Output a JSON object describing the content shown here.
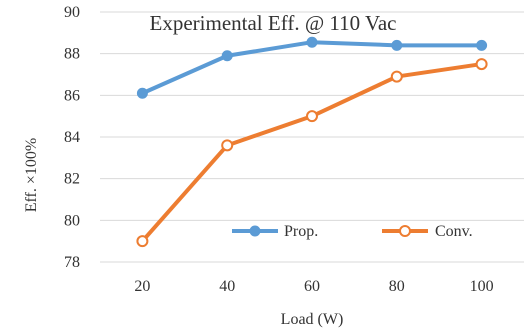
{
  "chart_data": {
    "type": "line",
    "title": "Experimental Eff. @ 110 Vac",
    "xlabel": "Load (W)",
    "ylabel": "Eff. ×100%",
    "categories": [
      "20",
      "40",
      "60",
      "80",
      "100"
    ],
    "x": [
      20,
      40,
      60,
      80,
      100
    ],
    "ylim": [
      78,
      90
    ],
    "yticks": [
      78,
      80,
      82,
      84,
      86,
      88,
      90
    ],
    "grid": "horizontal",
    "legend_position": "bottom-right inside plot",
    "series": [
      {
        "name": "Prop.",
        "values": [
          86.1,
          87.9,
          88.55,
          88.4,
          88.4
        ],
        "color": "#5b9bd5",
        "marker": "filled-circle"
      },
      {
        "name": "Conv.",
        "values": [
          79.0,
          83.6,
          85.0,
          86.9,
          87.5
        ],
        "color": "#ed7d31",
        "marker": "hollow-circle"
      }
    ]
  }
}
